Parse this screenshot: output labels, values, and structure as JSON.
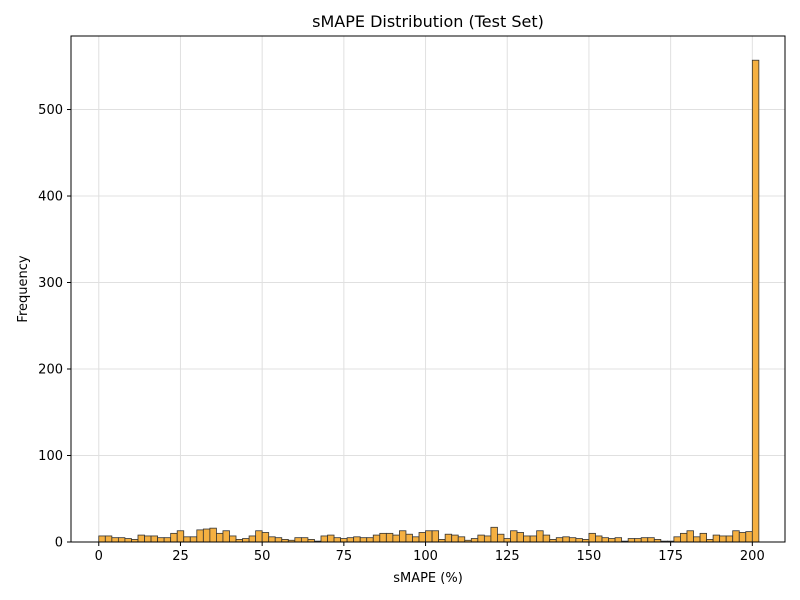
{
  "chart_data": {
    "type": "bar",
    "title": "sMAPE Distribution (Test Set)",
    "xlabel": "sMAPE (%)",
    "ylabel": "Frequency",
    "xlim": [
      -8.5,
      210
    ],
    "ylim": [
      0,
      585
    ],
    "xticks": [
      0,
      25,
      50,
      75,
      100,
      125,
      150,
      175,
      200
    ],
    "yticks": [
      0,
      100,
      200,
      300,
      400,
      500
    ],
    "grid": true,
    "bar_color": "#f5b041",
    "bar_edge_color": "#333333",
    "bin_width": 2,
    "bin_start": 0,
    "values": [
      7,
      7,
      5,
      5,
      4,
      3,
      8,
      7,
      7,
      5,
      5,
      10,
      13,
      6,
      6,
      14,
      15,
      16,
      10,
      13,
      7,
      3,
      4,
      7,
      13,
      11,
      6,
      5,
      3,
      2,
      5,
      5,
      3,
      1,
      7,
      8,
      5,
      4,
      5,
      6,
      5,
      5,
      8,
      10,
      10,
      8,
      13,
      9,
      6,
      11,
      13,
      13,
      3,
      9,
      8,
      6,
      2,
      4,
      8,
      7,
      17,
      9,
      4,
      13,
      11,
      7,
      7,
      13,
      8,
      3,
      5,
      6,
      5,
      4,
      3,
      10,
      7,
      5,
      4,
      5,
      1,
      4,
      4,
      5,
      5,
      3,
      1,
      1,
      6,
      10,
      13,
      6,
      10,
      3,
      8,
      7,
      7,
      13,
      11,
      12,
      557
    ]
  }
}
